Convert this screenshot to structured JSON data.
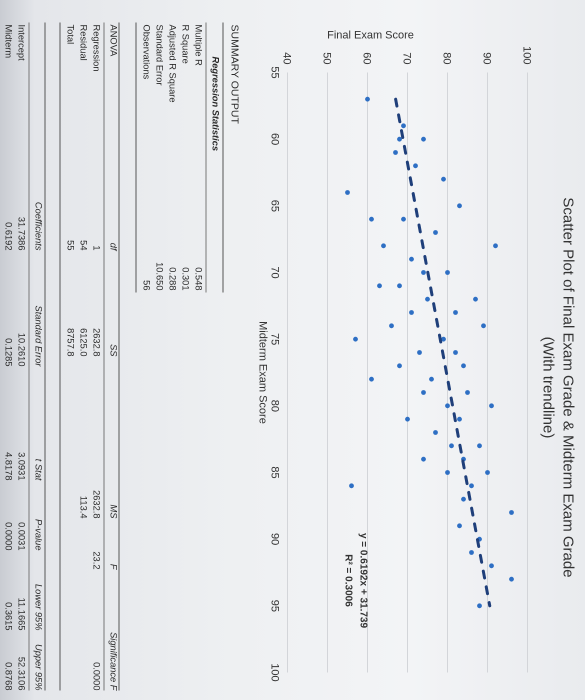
{
  "chart_data": {
    "type": "scatter",
    "title_lines": [
      "Scatter Plot of Final Exam Grade & Midterm Exam Grade",
      "(With trendline)"
    ],
    "xlabel": "Midterm Exam Score",
    "ylabel": "Final Exam Score",
    "xlim": [
      55,
      100
    ],
    "ylim": [
      40,
      100
    ],
    "xticks": [
      "55",
      "60",
      "65",
      "70",
      "75",
      "80",
      "85",
      "90",
      "95",
      "100"
    ],
    "yticks": [
      "40",
      "50",
      "60",
      "70",
      "80",
      "90",
      "100"
    ],
    "trendline_color": "#1f3f7a",
    "point_color": "#2e6fc4",
    "trendline": {
      "slope": 0.6192,
      "intercept": 31.739
    },
    "annotation": {
      "equation": "y = 0.6192x + 31.739",
      "r_squared": "R² = 0.3006"
    },
    "points": [
      {
        "x": 57,
        "y": 60
      },
      {
        "x": 59,
        "y": 69
      },
      {
        "x": 60,
        "y": 74
      },
      {
        "x": 60,
        "y": 68
      },
      {
        "x": 61,
        "y": 67
      },
      {
        "x": 62,
        "y": 72
      },
      {
        "x": 63,
        "y": 79
      },
      {
        "x": 64,
        "y": 55
      },
      {
        "x": 65,
        "y": 83
      },
      {
        "x": 66,
        "y": 61
      },
      {
        "x": 66,
        "y": 69
      },
      {
        "x": 67,
        "y": 77
      },
      {
        "x": 68,
        "y": 64
      },
      {
        "x": 68,
        "y": 92
      },
      {
        "x": 69,
        "y": 71
      },
      {
        "x": 70,
        "y": 74
      },
      {
        "x": 70,
        "y": 80
      },
      {
        "x": 71,
        "y": 63
      },
      {
        "x": 71,
        "y": 68
      },
      {
        "x": 72,
        "y": 87
      },
      {
        "x": 72,
        "y": 75
      },
      {
        "x": 73,
        "y": 71
      },
      {
        "x": 73,
        "y": 82
      },
      {
        "x": 74,
        "y": 66
      },
      {
        "x": 74,
        "y": 89
      },
      {
        "x": 75,
        "y": 57
      },
      {
        "x": 75,
        "y": 79
      },
      {
        "x": 76,
        "y": 73
      },
      {
        "x": 76,
        "y": 82
      },
      {
        "x": 77,
        "y": 84
      },
      {
        "x": 77,
        "y": 68
      },
      {
        "x": 78,
        "y": 61
      },
      {
        "x": 78,
        "y": 76
      },
      {
        "x": 79,
        "y": 85
      },
      {
        "x": 79,
        "y": 74
      },
      {
        "x": 80,
        "y": 80
      },
      {
        "x": 80,
        "y": 91
      },
      {
        "x": 81,
        "y": 70
      },
      {
        "x": 81,
        "y": 83
      },
      {
        "x": 82,
        "y": 77
      },
      {
        "x": 83,
        "y": 88
      },
      {
        "x": 83,
        "y": 81
      },
      {
        "x": 84,
        "y": 74
      },
      {
        "x": 84,
        "y": 84
      },
      {
        "x": 85,
        "y": 90
      },
      {
        "x": 85,
        "y": 80
      },
      {
        "x": 86,
        "y": 56
      },
      {
        "x": 86,
        "y": 86
      },
      {
        "x": 87,
        "y": 84
      },
      {
        "x": 88,
        "y": 96
      },
      {
        "x": 89,
        "y": 83
      },
      {
        "x": 90,
        "y": 88
      },
      {
        "x": 91,
        "y": 86
      },
      {
        "x": 92,
        "y": 91
      },
      {
        "x": 93,
        "y": 96
      },
      {
        "x": 95,
        "y": 88
      }
    ]
  },
  "summary": {
    "title": "SUMMARY OUTPUT",
    "regression_statistics": {
      "heading": "Regression Statistics",
      "rows": [
        {
          "label": "Multiple R",
          "value": "0.548"
        },
        {
          "label": "R Square",
          "value": "0.301"
        },
        {
          "label": "Adjusted R Square",
          "value": "0.288"
        },
        {
          "label": "Standard Error",
          "value": "10.650"
        },
        {
          "label": "Observations",
          "value": "56"
        }
      ]
    },
    "anova": {
      "title": "ANOVA",
      "headers": [
        "df",
        "SS",
        "MS",
        "F",
        "Significance F"
      ],
      "rows": [
        {
          "label": "Regression",
          "df": "1",
          "ss": "2632.8",
          "ms": "2632.8",
          "f": "23.2",
          "sig": "0.0000"
        },
        {
          "label": "Residual",
          "df": "54",
          "ss": "6125.0",
          "ms": "113.4",
          "f": "",
          "sig": ""
        },
        {
          "label": "Total",
          "df": "55",
          "ss": "8757.8",
          "ms": "",
          "f": "",
          "sig": ""
        }
      ]
    },
    "coefficients": {
      "headers": [
        "Coefficients",
        "Standard Error",
        "t Stat",
        "P-value",
        "Lower 95%",
        "Upper 95%"
      ],
      "rows": [
        {
          "label": "Intercept",
          "coef": "31.7386",
          "se": "10.2610",
          "t": "3.0931",
          "p": "0.0031",
          "lower": "11.1665",
          "upper": "52.3106"
        },
        {
          "label": "Midterm",
          "coef": "0.6192",
          "se": "0.1285",
          "t": "4.8178",
          "p": "0.0000",
          "lower": "0.3615",
          "upper": "0.8768"
        }
      ]
    }
  }
}
